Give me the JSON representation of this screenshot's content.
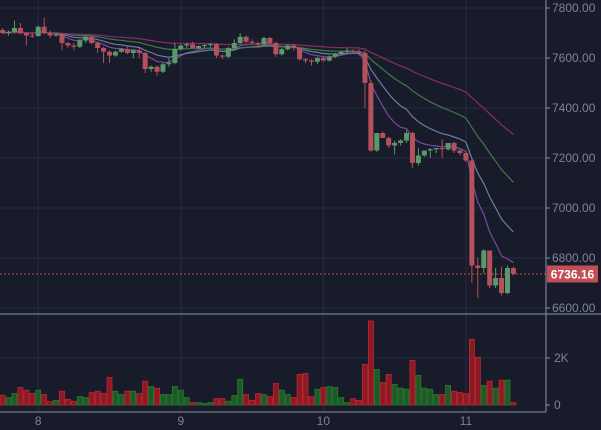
{
  "chart_data": {
    "type": "candlestick",
    "title": "",
    "x_labels": [
      {
        "label": "8",
        "index": 6
      },
      {
        "label": "9",
        "index": 30
      },
      {
        "label": "10",
        "index": 54
      },
      {
        "label": "11",
        "index": 78
      }
    ],
    "price_axis": {
      "ticks": [
        "6600.00",
        "6800.00",
        "7000.00",
        "7200.00",
        "7400.00",
        "7600.00",
        "7800.00"
      ],
      "range": [
        6580,
        7830
      ]
    },
    "volume_axis": {
      "ticks": [
        {
          "label": "0",
          "value": 0
        },
        {
          "label": "2K",
          "value": 2000
        }
      ]
    },
    "grid": true,
    "last_price": {
      "value": 6736.16,
      "label": "6736.16"
    },
    "moving_averages": [
      {
        "color": "#7b4a9e"
      },
      {
        "color": "#6a7fa0"
      },
      {
        "color": "#3f7a45"
      },
      {
        "color": "#8a2a6e"
      }
    ],
    "colors": {
      "up": "#5a9a6a",
      "down": "#b5515c",
      "volume_up": "#1e5a25",
      "volume_down": "#8b1a24",
      "last_price": "#c14f55",
      "background": "#181b2a",
      "grid": "#252c45"
    },
    "candles": {
      "open": [
        7712,
        7700,
        7705,
        7720,
        7700,
        7690,
        7688,
        7725,
        7700,
        7690,
        7695,
        7660,
        7650,
        7645,
        7670,
        7685,
        7660,
        7640,
        7625,
        7610,
        7625,
        7635,
        7620,
        7630,
        7620,
        7556,
        7565,
        7545,
        7575,
        7580,
        7636,
        7650,
        7655,
        7640,
        7648,
        7652,
        7655,
        7610,
        7605,
        7640,
        7660,
        7685,
        7665,
        7660,
        7655,
        7680,
        7660,
        7615,
        7635,
        7650,
        7640,
        7595,
        7590,
        7585,
        7600,
        7590,
        7605,
        7615,
        7625,
        7630,
        7625,
        7620,
        7500,
        7230,
        7300,
        7280,
        7250,
        7260,
        7270,
        7300,
        7180,
        7210,
        7230,
        7235,
        7240,
        7235,
        7260,
        7230,
        7220,
        7190,
        6770,
        6760,
        6830,
        6690,
        6720,
        6660,
        6760
      ],
      "high": [
        7720,
        7710,
        7750,
        7740,
        7705,
        7700,
        7730,
        7760,
        7710,
        7700,
        7700,
        7665,
        7660,
        7675,
        7690,
        7690,
        7665,
        7645,
        7630,
        7630,
        7640,
        7645,
        7635,
        7640,
        7625,
        7570,
        7570,
        7580,
        7600,
        7660,
        7655,
        7660,
        7665,
        7650,
        7655,
        7660,
        7660,
        7615,
        7645,
        7675,
        7700,
        7690,
        7675,
        7665,
        7685,
        7685,
        7665,
        7640,
        7655,
        7655,
        7645,
        7600,
        7595,
        7605,
        7605,
        7610,
        7620,
        7630,
        7640,
        7635,
        7635,
        7630,
        7510,
        7300,
        7305,
        7285,
        7270,
        7275,
        7310,
        7305,
        7240,
        7230,
        7240,
        7240,
        7275,
        7245,
        7265,
        7235,
        7225,
        7195,
        6800,
        6835,
        6830,
        6760,
        6765,
        6770,
        6765
      ],
      "low": [
        7695,
        7690,
        7700,
        7695,
        7650,
        7680,
        7685,
        7695,
        7680,
        7685,
        7630,
        7640,
        7630,
        7640,
        7660,
        7655,
        7620,
        7580,
        7580,
        7605,
        7620,
        7615,
        7600,
        7600,
        7540,
        7545,
        7530,
        7540,
        7565,
        7575,
        7630,
        7640,
        7640,
        7635,
        7640,
        7645,
        7600,
        7595,
        7600,
        7630,
        7655,
        7660,
        7655,
        7640,
        7650,
        7650,
        7605,
        7610,
        7630,
        7630,
        7590,
        7580,
        7570,
        7575,
        7585,
        7585,
        7600,
        7610,
        7620,
        7620,
        7610,
        7400,
        7225,
        7225,
        7280,
        7240,
        7215,
        7250,
        7260,
        7160,
        7170,
        7205,
        7200,
        7220,
        7200,
        7230,
        7220,
        7210,
        7185,
        6700,
        6640,
        6740,
        6680,
        6680,
        6650,
        6655,
        6730
      ],
      "close": [
        7700,
        7705,
        7720,
        7700,
        7690,
        7688,
        7725,
        7700,
        7690,
        7695,
        7660,
        7650,
        7645,
        7670,
        7685,
        7660,
        7640,
        7625,
        7610,
        7625,
        7635,
        7620,
        7630,
        7620,
        7556,
        7565,
        7545,
        7575,
        7580,
        7636,
        7650,
        7655,
        7640,
        7648,
        7652,
        7655,
        7610,
        7605,
        7640,
        7660,
        7685,
        7665,
        7660,
        7655,
        7680,
        7660,
        7615,
        7635,
        7650,
        7640,
        7595,
        7590,
        7585,
        7600,
        7590,
        7605,
        7615,
        7625,
        7630,
        7625,
        7620,
        7500,
        7230,
        7300,
        7280,
        7250,
        7260,
        7270,
        7300,
        7180,
        7210,
        7230,
        7235,
        7240,
        7235,
        7260,
        7230,
        7220,
        7190,
        6770,
        6760,
        6830,
        6690,
        6720,
        6660,
        6760,
        6736.16
      ],
      "volume": [
        414,
        314,
        486,
        743,
        629,
        486,
        629,
        443,
        143,
        200,
        586,
        243,
        157,
        357,
        314,
        529,
        586,
        486,
        1171,
        586,
        443,
        586,
        586,
        486,
        1014,
        786,
        714,
        443,
        443,
        786,
        629,
        314,
        100,
        100,
        57,
        100,
        271,
        271,
        157,
        400,
        1100,
        443,
        200,
        486,
        443,
        357,
        914,
        629,
        443,
        314,
        1300,
        1343,
        357,
        671,
        743,
        786,
        743,
        314,
        100,
        271,
        200,
        1729,
        3571,
        1514,
        957,
        1300,
        871,
        714,
        671,
        1900,
        1257,
        714,
        671,
        443,
        443,
        829,
        586,
        529,
        486,
        2800,
        2029,
        829,
        1014,
        714,
        1057,
        1057,
        100
      ]
    }
  }
}
